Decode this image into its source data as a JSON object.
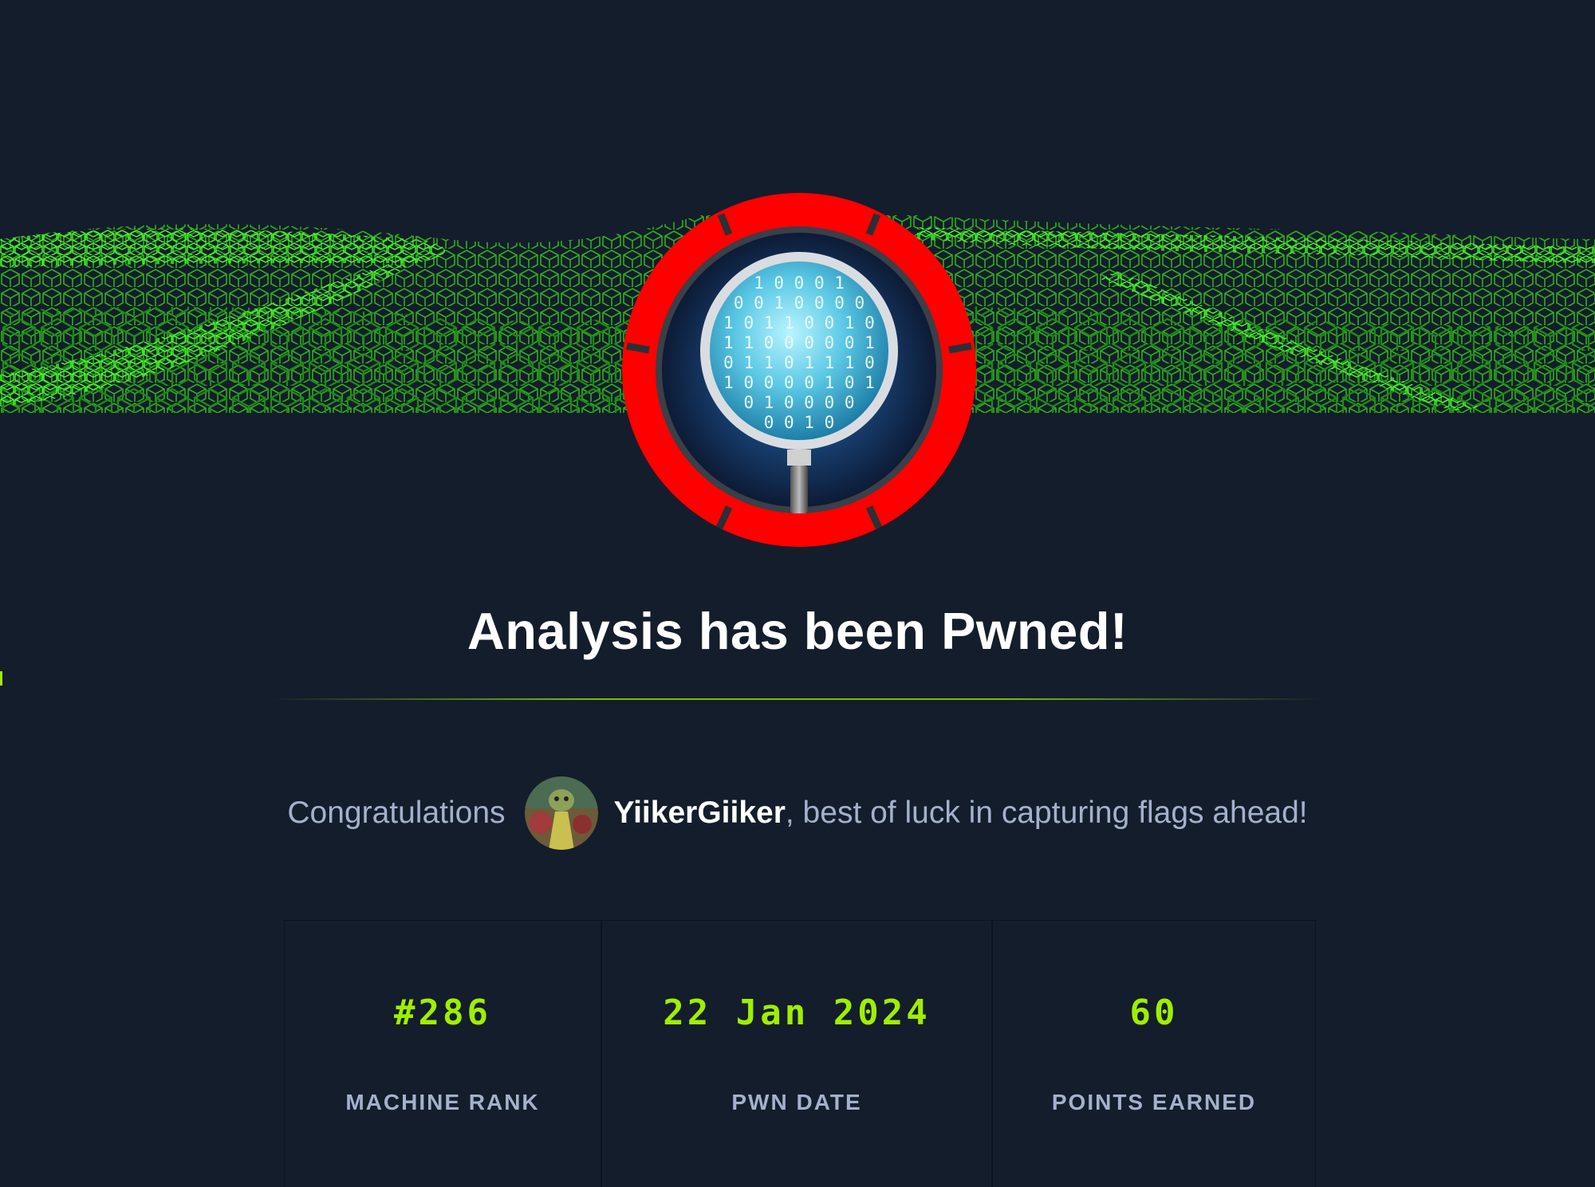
{
  "colors": {
    "background": "#141d2b",
    "accent_green": "#9fef00",
    "badge_red": "#ff0000",
    "text_muted": "#a4b1cd",
    "text_white": "#ffffff"
  },
  "banner": {
    "icon": "green-cube-wave-pattern"
  },
  "badge": {
    "icon": "magnifying-glass-binary-icon",
    "binary_rows": [
      "1 0 0 0 1",
      "0 0 1 0 0 0 0",
      "1 0 1 1 0 0 1 0",
      "1 1 0 0 0 0 0 1",
      "0 1 1 0 1 1 1 0",
      "1 0 0 0 0 1 0 1",
      "0 1 0 0 0 0",
      "0 0 1 0"
    ]
  },
  "title": "Analysis has been Pwned!",
  "congrats": {
    "prefix": "Congratulations",
    "avatar_icon": "user-avatar",
    "username": "YiikerGiiker",
    "suffix": ", best of luck in capturing flags ahead!"
  },
  "stats": [
    {
      "value": "#286",
      "label": "MACHINE RANK"
    },
    {
      "value": "22 Jan 2024",
      "label": "PWN DATE"
    },
    {
      "value": "60",
      "label": "POINTS EARNED"
    }
  ]
}
